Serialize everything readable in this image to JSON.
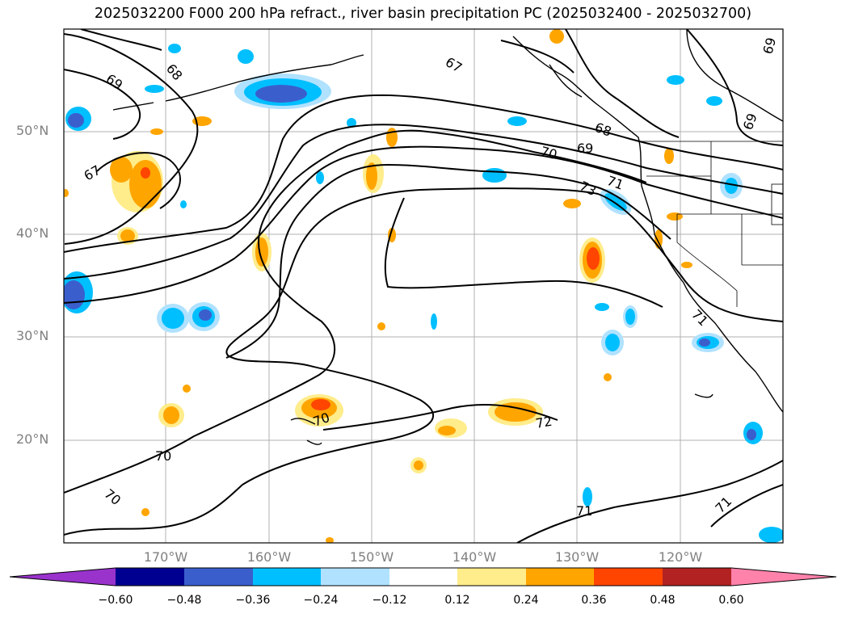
{
  "title": "2025032200 F000 200 hPa refract., river basin precipitation PC (2025032400 - 2025032700)",
  "map": {
    "lat_labels": [
      "50°N",
      "40°N",
      "30°N",
      "20°N"
    ],
    "lon_labels": [
      "170°W",
      "160°W",
      "150°W",
      "140°W",
      "130°W",
      "120°W"
    ],
    "contour_labels": [
      "69",
      "68",
      "67",
      "67",
      "70",
      "69",
      "68",
      "71",
      "73",
      "69",
      "71",
      "70",
      "70",
      "72",
      "70",
      "71",
      "71",
      "69"
    ]
  },
  "colorbar": {
    "tick_labels": [
      "−0.60",
      "−0.48",
      "−0.36",
      "−0.24",
      "−0.12",
      "0.12",
      "0.24",
      "0.36",
      "0.48",
      "0.60"
    ],
    "colors": [
      "#9933cc",
      "#000090",
      "#3a5fcd",
      "#00bfff",
      "#b0e2ff",
      "#ffffff",
      "#ffec8b",
      "#ffa500",
      "#ff4500",
      "#b22222",
      "#ff82ab"
    ]
  }
}
